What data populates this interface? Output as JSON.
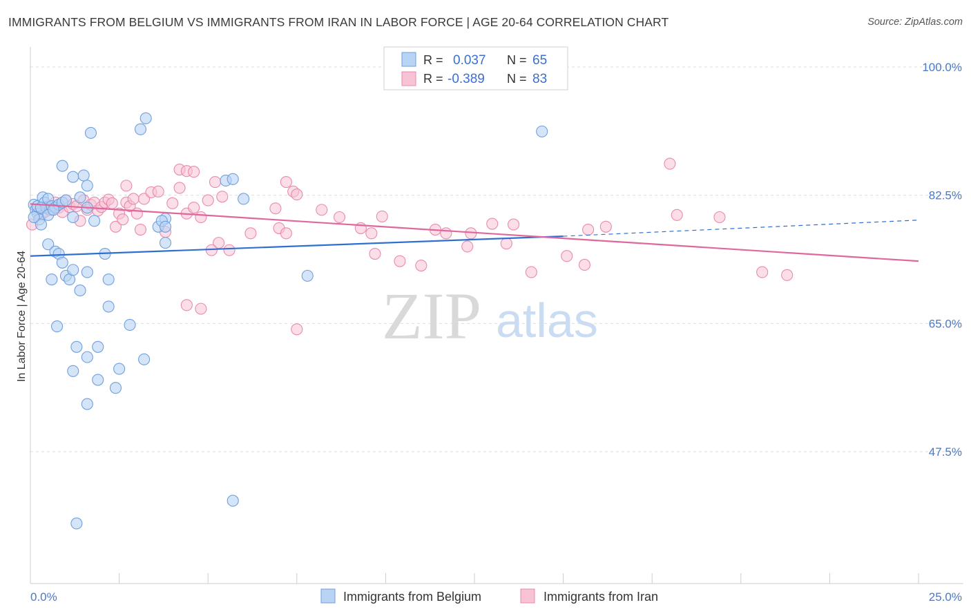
{
  "title": "IMMIGRANTS FROM BELGIUM VS IMMIGRANTS FROM IRAN IN LABOR FORCE | AGE 20-64 CORRELATION CHART",
  "source": "Source: ZipAtlas.com",
  "watermark": {
    "zip": "ZIP",
    "atlas": "atlas"
  },
  "legend": {
    "r_label": "R =",
    "n_label": "N =",
    "belgium": {
      "r": "0.037",
      "n": "65"
    },
    "iran": {
      "r": "-0.389",
      "n": "83"
    }
  },
  "bottom_legend": {
    "belgium": "Immigrants from Belgium",
    "iran": "Immigrants from Iran"
  },
  "colors": {
    "belgium_fill": "#b9d3f5",
    "belgium_stroke": "#6f9fdc",
    "belgium_line": "#2e6fd0",
    "iran_fill": "#f8c3d5",
    "iran_stroke": "#e98aad",
    "iran_line": "#e0679a",
    "tick_text": "#4a78c8",
    "grid": "#dddddd"
  },
  "chart_data": {
    "type": "scatter",
    "title": "IMMIGRANTS FROM BELGIUM VS IMMIGRANTS FROM IRAN IN LABOR FORCE | AGE 20-64 CORRELATION CHART",
    "xlabel": "",
    "ylabel": "In Labor Force | Age 20-64",
    "xlim": [
      0,
      25
    ],
    "ylim": [
      30,
      107
    ],
    "x_tick_labels": [
      "0.0%",
      "25.0%"
    ],
    "y_ticks": [
      47.5,
      65.0,
      82.5,
      100.0
    ],
    "y_tick_labels": [
      "47.5%",
      "65.0%",
      "82.5%",
      "100.0%"
    ],
    "grid": true,
    "legend_position": "top-center",
    "series": [
      {
        "name": "Immigrants from Belgium",
        "r": 0.037,
        "n": 65,
        "trend": {
          "x0": 0,
          "y0": 74.2,
          "x1": 15,
          "y1": 76.9,
          "dashed_to_x": 25,
          "dashed_to_y": 79.1
        },
        "points": [
          [
            0.1,
            81.2
          ],
          [
            0.15,
            80.5
          ],
          [
            0.2,
            80.0
          ],
          [
            0.25,
            79.2
          ],
          [
            0.3,
            78.5
          ],
          [
            0.1,
            79.5
          ],
          [
            0.2,
            81.0
          ],
          [
            0.35,
            82.2
          ],
          [
            0.4,
            81.5
          ],
          [
            0.45,
            80.8
          ],
          [
            0.5,
            82.0
          ],
          [
            0.55,
            80.5
          ],
          [
            0.6,
            81.0
          ],
          [
            0.7,
            80.8
          ],
          [
            0.8,
            81.2
          ],
          [
            0.9,
            81.5
          ],
          [
            0.3,
            80.8
          ],
          [
            0.5,
            79.8
          ],
          [
            0.65,
            80.5
          ],
          [
            1.0,
            81.8
          ],
          [
            1.2,
            79.5
          ],
          [
            1.4,
            82.2
          ],
          [
            1.6,
            80.8
          ],
          [
            1.8,
            79.0
          ],
          [
            0.9,
            86.5
          ],
          [
            1.2,
            85.0
          ],
          [
            1.5,
            85.2
          ],
          [
            1.6,
            83.8
          ],
          [
            3.1,
            91.5
          ],
          [
            3.25,
            93.0
          ],
          [
            1.7,
            91.0
          ],
          [
            14.4,
            91.2
          ],
          [
            5.5,
            84.5
          ],
          [
            5.7,
            84.7
          ],
          [
            6.0,
            82.0
          ],
          [
            3.8,
            79.3
          ],
          [
            3.6,
            78.2
          ],
          [
            3.7,
            79.0
          ],
          [
            3.8,
            78.2
          ],
          [
            0.5,
            75.8
          ],
          [
            0.6,
            71.0
          ],
          [
            0.7,
            74.8
          ],
          [
            0.8,
            74.5
          ],
          [
            0.9,
            73.3
          ],
          [
            1.0,
            71.5
          ],
          [
            1.1,
            71.0
          ],
          [
            1.2,
            72.3
          ],
          [
            1.4,
            69.5
          ],
          [
            1.6,
            72.0
          ],
          [
            2.1,
            74.5
          ],
          [
            2.2,
            71.0
          ],
          [
            2.2,
            67.3
          ],
          [
            2.8,
            64.8
          ],
          [
            3.8,
            76.0
          ],
          [
            7.8,
            71.5
          ],
          [
            0.75,
            64.6
          ],
          [
            1.3,
            61.8
          ],
          [
            1.9,
            61.8
          ],
          [
            1.6,
            60.4
          ],
          [
            1.2,
            58.5
          ],
          [
            1.9,
            57.3
          ],
          [
            2.5,
            58.8
          ],
          [
            3.2,
            60.1
          ],
          [
            2.4,
            56.2
          ],
          [
            1.6,
            54.0
          ],
          [
            5.7,
            40.8
          ],
          [
            1.3,
            37.7
          ]
        ]
      },
      {
        "name": "Immigrants from Iran",
        "r": -0.389,
        "n": 83,
        "trend": {
          "x0": 0,
          "y0": 81.3,
          "x1": 25,
          "y1": 73.5
        },
        "points": [
          [
            0.05,
            78.5
          ],
          [
            0.2,
            80.5
          ],
          [
            0.3,
            79.8
          ],
          [
            0.4,
            80.2
          ],
          [
            0.5,
            81.0
          ],
          [
            0.6,
            80.5
          ],
          [
            0.7,
            81.5
          ],
          [
            0.8,
            80.8
          ],
          [
            0.9,
            80.2
          ],
          [
            1.0,
            81.8
          ],
          [
            1.1,
            80.9
          ],
          [
            1.2,
            81.3
          ],
          [
            1.3,
            81.0
          ],
          [
            1.4,
            79.0
          ],
          [
            1.5,
            81.8
          ],
          [
            1.6,
            80.5
          ],
          [
            1.7,
            81.2
          ],
          [
            1.8,
            81.5
          ],
          [
            1.9,
            80.4
          ],
          [
            2.0,
            80.9
          ],
          [
            2.1,
            81.5
          ],
          [
            2.2,
            81.9
          ],
          [
            2.3,
            81.4
          ],
          [
            2.4,
            78.2
          ],
          [
            2.5,
            80.0
          ],
          [
            2.6,
            79.2
          ],
          [
            2.7,
            81.5
          ],
          [
            2.8,
            81.0
          ],
          [
            2.9,
            82.0
          ],
          [
            3.0,
            80.0
          ],
          [
            3.1,
            77.8
          ],
          [
            3.2,
            82.0
          ],
          [
            3.4,
            82.9
          ],
          [
            3.6,
            83.0
          ],
          [
            3.8,
            77.5
          ],
          [
            4.0,
            81.4
          ],
          [
            4.2,
            83.5
          ],
          [
            4.4,
            80.0
          ],
          [
            4.6,
            80.8
          ],
          [
            4.8,
            79.5
          ],
          [
            5.0,
            81.8
          ],
          [
            5.2,
            84.3
          ],
          [
            5.4,
            82.3
          ],
          [
            4.2,
            86.0
          ],
          [
            4.4,
            85.8
          ],
          [
            4.6,
            85.7
          ],
          [
            2.7,
            83.8
          ],
          [
            7.2,
            84.3
          ],
          [
            7.4,
            83.0
          ],
          [
            7.5,
            82.6
          ],
          [
            6.9,
            80.7
          ],
          [
            8.2,
            80.5
          ],
          [
            8.7,
            79.5
          ],
          [
            9.3,
            78.0
          ],
          [
            9.6,
            77.3
          ],
          [
            9.9,
            79.6
          ],
          [
            7.0,
            78.0
          ],
          [
            7.2,
            77.3
          ],
          [
            6.2,
            77.3
          ],
          [
            5.3,
            76.0
          ],
          [
            5.6,
            75.0
          ],
          [
            5.1,
            75.0
          ],
          [
            11.4,
            77.8
          ],
          [
            11.7,
            77.3
          ],
          [
            12.4,
            77.3
          ],
          [
            13.0,
            78.6
          ],
          [
            13.6,
            78.5
          ],
          [
            10.4,
            73.5
          ],
          [
            11.0,
            72.9
          ],
          [
            14.1,
            72.0
          ],
          [
            15.1,
            74.2
          ],
          [
            15.6,
            73.0
          ],
          [
            15.7,
            77.8
          ],
          [
            16.2,
            78.2
          ],
          [
            12.3,
            75.5
          ],
          [
            13.4,
            75.9
          ],
          [
            9.7,
            74.5
          ],
          [
            18.2,
            79.8
          ],
          [
            19.4,
            79.5
          ],
          [
            20.6,
            72.0
          ],
          [
            21.3,
            71.6
          ],
          [
            18.0,
            86.8
          ],
          [
            4.4,
            67.5
          ],
          [
            4.8,
            67.0
          ],
          [
            7.5,
            64.2
          ]
        ]
      }
    ]
  }
}
